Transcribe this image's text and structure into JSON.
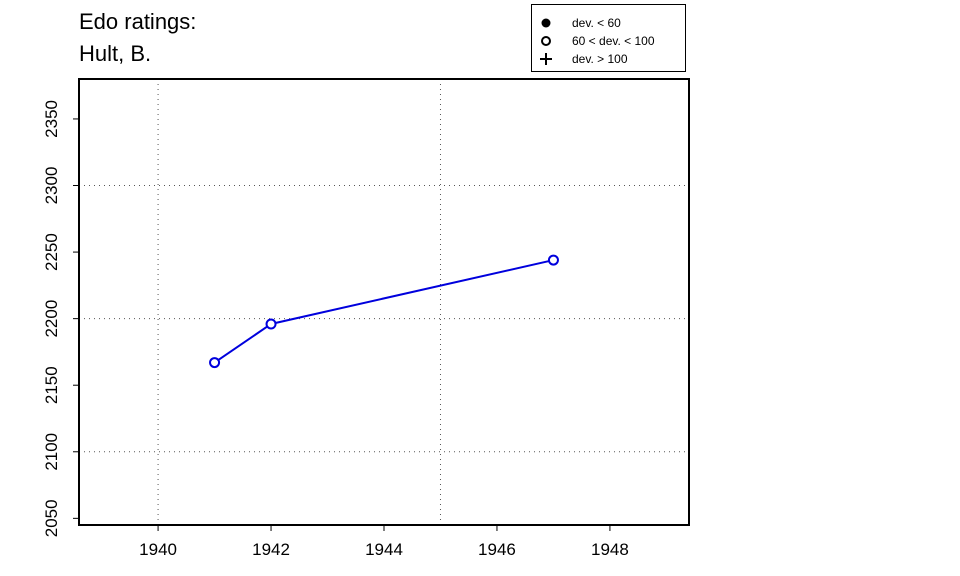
{
  "title_line1": "Edo ratings:",
  "title_line2": "Hult, B.",
  "legend": [
    {
      "symbol": "filled-circle",
      "label": "dev. < 60"
    },
    {
      "symbol": "open-circle",
      "label": "60 < dev. < 100"
    },
    {
      "symbol": "plus",
      "label": "dev. > 100"
    }
  ],
  "chart_data": {
    "type": "line",
    "title": "Edo ratings: Hult, B.",
    "xlabel": "",
    "ylabel": "",
    "x_ticks": [
      1940,
      1942,
      1944,
      1946,
      1948
    ],
    "y_ticks": [
      2050,
      2100,
      2150,
      2200,
      2250,
      2300,
      2350
    ],
    "xlim": [
      1938.6,
      1949.4
    ],
    "ylim": [
      2045,
      2380
    ],
    "grid_x": [
      1940,
      1945
    ],
    "grid_y": [
      2100,
      2200,
      2300
    ],
    "series": [
      {
        "color": "#0000dd",
        "marker": "open-circle",
        "x": [
          1941,
          1942,
          1947
        ],
        "y": [
          2167,
          2196,
          2244
        ]
      }
    ]
  }
}
